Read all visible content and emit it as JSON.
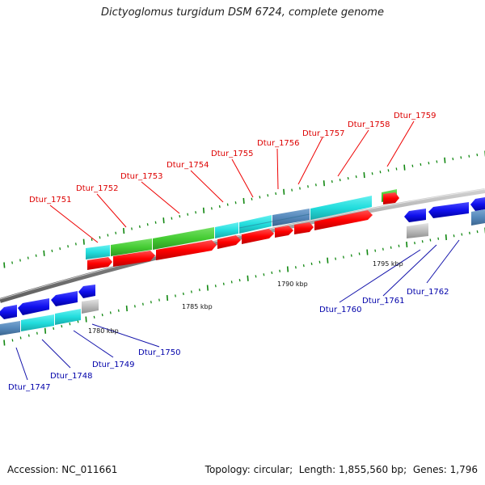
{
  "title": "Dictyoglomus turgidum DSM 6724, complete genome",
  "footer": {
    "accession_label": "Accession:",
    "accession": "NC_011661",
    "topology_label": "Topology:",
    "topology": "circular",
    "length_label": "Length:",
    "length": "1,855,560 bp",
    "genes_label": "Genes:",
    "genes": "1,796"
  },
  "scale_labels": [
    "1780 kbp",
    "1785 kbp",
    "1790 kbp",
    "1795 kbp"
  ],
  "forward_genes": [
    {
      "name": "Dtur_1751",
      "color": "#e00000"
    },
    {
      "name": "Dtur_1752",
      "color": "#e00000"
    },
    {
      "name": "Dtur_1753",
      "color": "#e00000"
    },
    {
      "name": "Dtur_1754",
      "color": "#e00000"
    },
    {
      "name": "Dtur_1755",
      "color": "#e00000"
    },
    {
      "name": "Dtur_1756",
      "color": "#e00000"
    },
    {
      "name": "Dtur_1757",
      "color": "#e00000"
    },
    {
      "name": "Dtur_1758",
      "color": "#e00000"
    },
    {
      "name": "Dtur_1759",
      "color": "#e00000"
    }
  ],
  "reverse_genes": [
    {
      "name": "Dtur_1747",
      "color": "#0000cc"
    },
    {
      "name": "Dtur_1748",
      "color": "#0000cc"
    },
    {
      "name": "Dtur_1749",
      "color": "#0000cc"
    },
    {
      "name": "Dtur_1750",
      "color": "#0000cc"
    },
    {
      "name": "Dtur_1760",
      "color": "#0000cc"
    },
    {
      "name": "Dtur_1761",
      "color": "#0000cc"
    },
    {
      "name": "Dtur_1762",
      "color": "#0000cc"
    }
  ],
  "colors": {
    "forward_cds": "#ff0000",
    "reverse_cds": "#1010ee",
    "cog_green": "#44cc33",
    "cog_cyan": "#22dddd",
    "cog_steel": "#5588bb",
    "gray_feature": "#bbbbbb",
    "backbone": "#888888",
    "ticks": "#118811"
  }
}
